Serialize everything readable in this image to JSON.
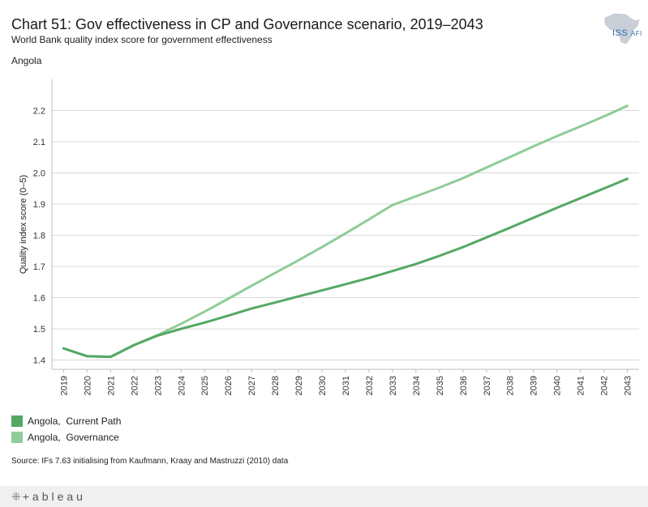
{
  "header": {
    "title": "Chart 51: Gov effectiveness in CP and Governance scenario, 2019–2043",
    "subtitle": "World Bank quality index score for government effectiveness",
    "country": "Angola"
  },
  "logo": {
    "main": "ISS",
    "sub": "AFI",
    "icon": "africa-map-icon"
  },
  "chart_data": {
    "type": "line",
    "title": "Chart 51: Gov effectiveness in CP and Governance scenario, 2019–2043",
    "xlabel": "",
    "ylabel": "Quality index score (0–5)",
    "ylim": [
      1.37,
      2.3
    ],
    "yticks": [
      1.4,
      1.5,
      1.6,
      1.7,
      1.8,
      1.9,
      2.0,
      2.1,
      2.2
    ],
    "ytick_labels": [
      "1.4",
      "1.5",
      "1.6",
      "1.7",
      "1.8",
      "1.9",
      "2.0",
      "2.1",
      "2.2"
    ],
    "grid": true,
    "x": [
      "2019",
      "2020",
      "2021",
      "2022",
      "2023",
      "2024",
      "2025",
      "2026",
      "2027",
      "2028",
      "2029",
      "2030",
      "2031",
      "2032",
      "2033",
      "2034",
      "2035",
      "2036",
      "2037",
      "2038",
      "2039",
      "2040",
      "2041",
      "2042",
      "2043"
    ],
    "series": [
      {
        "name": "Angola,  Current Path",
        "color": "#55a863",
        "values": [
          1.437,
          1.412,
          1.41,
          1.448,
          1.478,
          1.5,
          1.52,
          1.542,
          1.565,
          1.584,
          1.604,
          1.623,
          1.643,
          1.663,
          1.685,
          1.708,
          1.734,
          1.762,
          1.793,
          1.824,
          1.856,
          1.888,
          1.919,
          1.95,
          1.981
        ]
      },
      {
        "name": "Angola,  Governance",
        "color": "#8fcc98",
        "values": [
          1.437,
          1.412,
          1.41,
          1.448,
          1.48,
          1.516,
          1.555,
          1.596,
          1.638,
          1.679,
          1.72,
          1.762,
          1.806,
          1.851,
          1.897,
          1.925,
          1.953,
          1.983,
          2.017,
          2.051,
          2.085,
          2.118,
          2.149,
          2.181,
          2.215
        ]
      }
    ],
    "legend": "bottom-left"
  },
  "legend": {
    "items": [
      {
        "label": "Angola,  Current Path",
        "color": "#55a863"
      },
      {
        "label": "Angola,  Governance",
        "color": "#8fcc98"
      }
    ]
  },
  "source": "Source: IFs 7.63 initialising from Kaufmann, Kraay and Mastruzzi (2010) data",
  "footer": {
    "brand": "+ableau",
    "brand_icon": "tableau-plus-icon"
  }
}
